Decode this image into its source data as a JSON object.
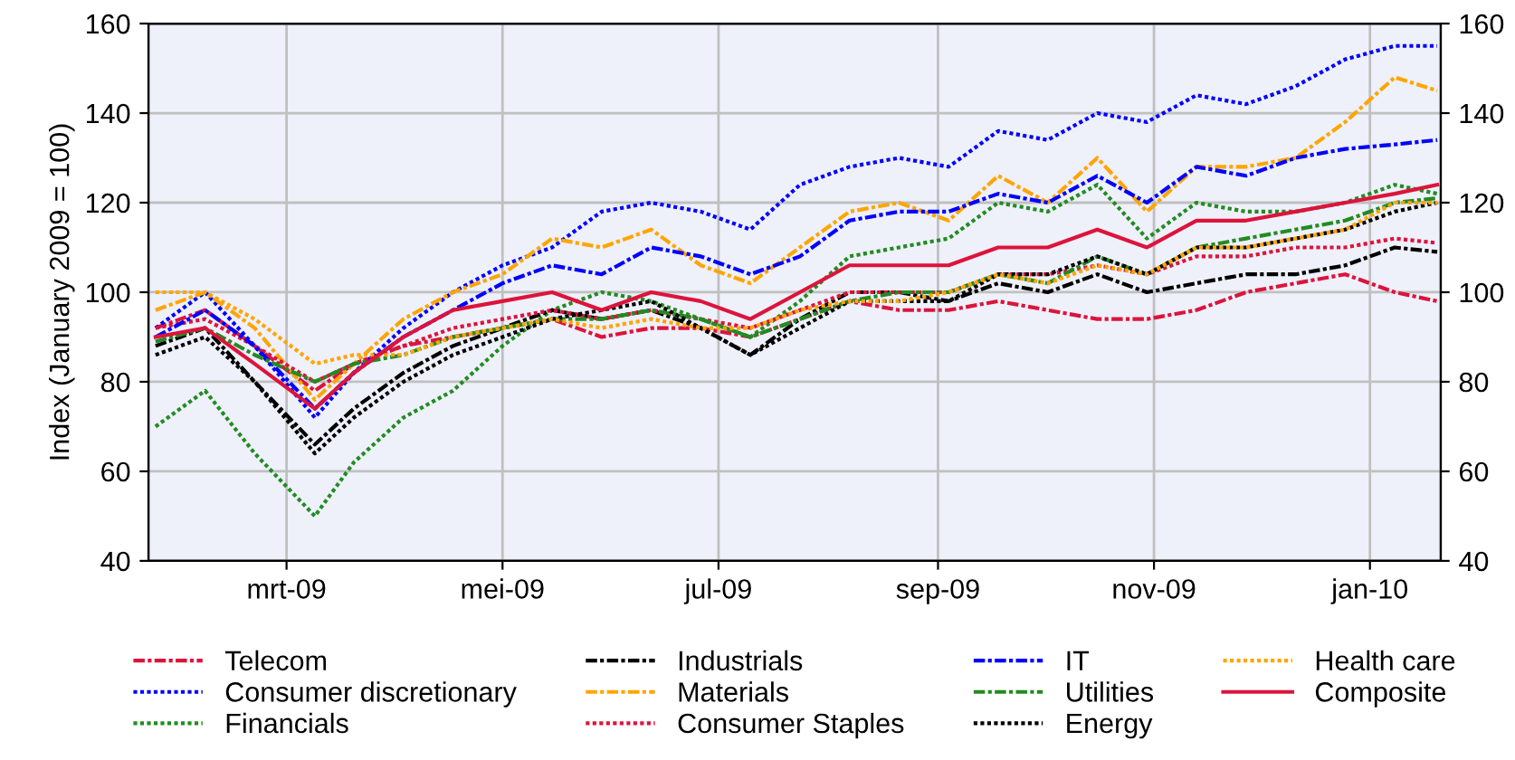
{
  "chart_data": {
    "type": "line",
    "ylabel": "Index (January 2009 = 100)",
    "x": [
      "2009-01-23",
      "2009-02-06",
      "2009-02-20",
      "2009-03-09",
      "2009-03-20",
      "2009-04-03",
      "2009-04-17",
      "2009-05-01",
      "2009-05-15",
      "2009-05-29",
      "2009-06-12",
      "2009-06-26",
      "2009-07-10",
      "2009-07-24",
      "2009-08-07",
      "2009-08-21",
      "2009-09-04",
      "2009-09-18",
      "2009-10-02",
      "2009-10-16",
      "2009-10-30",
      "2009-11-13",
      "2009-11-27",
      "2009-12-11",
      "2009-12-25",
      "2010-01-08",
      "2010-01-20"
    ],
    "series": [
      {
        "name": "Telecom",
        "color": "#dc143c",
        "line_style": "dashdot",
        "values": [
          92,
          96,
          88,
          78,
          84,
          88,
          90,
          92,
          94,
          90,
          92,
          92,
          90,
          94,
          98,
          96,
          96,
          98,
          96,
          94,
          94,
          96,
          100,
          102,
          104,
          100,
          98
        ]
      },
      {
        "name": "Consumer discretionary",
        "color": "#0000ff",
        "line_style": "dotted",
        "values": [
          92,
          100,
          88,
          72,
          82,
          92,
          100,
          106,
          110,
          118,
          120,
          118,
          114,
          124,
          128,
          130,
          128,
          136,
          134,
          140,
          138,
          144,
          142,
          146,
          152,
          155,
          155
        ]
      },
      {
        "name": "Financials",
        "color": "#228b22",
        "line_style": "dotted",
        "values": [
          70,
          78,
          64,
          50,
          62,
          72,
          78,
          88,
          96,
          100,
          98,
          94,
          90,
          98,
          108,
          110,
          112,
          120,
          118,
          124,
          112,
          120,
          118,
          118,
          120,
          124,
          122
        ]
      },
      {
        "name": "Industrials",
        "color": "#000000",
        "line_style": "dashdot",
        "values": [
          88,
          92,
          80,
          66,
          74,
          82,
          88,
          92,
          96,
          94,
          96,
          92,
          86,
          94,
          100,
          100,
          98,
          102,
          100,
          104,
          100,
          102,
          104,
          104,
          106,
          110,
          109
        ]
      },
      {
        "name": "Materials",
        "color": "#ffa500",
        "line_style": "dashdot",
        "values": [
          96,
          100,
          92,
          76,
          84,
          94,
          100,
          104,
          112,
          110,
          114,
          106,
          102,
          110,
          118,
          120,
          116,
          126,
          120,
          130,
          118,
          128,
          128,
          130,
          138,
          148,
          145
        ]
      },
      {
        "name": "Consumer Staples",
        "color": "#dc143c",
        "line_style": "dotted",
        "values": [
          92,
          94,
          88,
          80,
          84,
          88,
          92,
          94,
          96,
          94,
          96,
          94,
          92,
          96,
          100,
          100,
          100,
          104,
          104,
          106,
          104,
          108,
          108,
          110,
          110,
          112,
          111
        ]
      },
      {
        "name": "IT",
        "color": "#0000ff",
        "line_style": "dashdot",
        "values": [
          90,
          96,
          88,
          74,
          82,
          90,
          96,
          102,
          106,
          104,
          110,
          108,
          104,
          108,
          116,
          118,
          118,
          122,
          120,
          126,
          120,
          128,
          126,
          130,
          132,
          133,
          134
        ]
      },
      {
        "name": "Utilities",
        "color": "#228b22",
        "line_style": "dashdot",
        "values": [
          89,
          92,
          86,
          80,
          84,
          86,
          90,
          92,
          94,
          94,
          96,
          94,
          90,
          94,
          98,
          100,
          100,
          104,
          102,
          108,
          104,
          110,
          112,
          114,
          116,
          120,
          121
        ]
      },
      {
        "name": "Energy",
        "color": "#000000",
        "line_style": "dotted",
        "values": [
          86,
          90,
          80,
          64,
          72,
          80,
          86,
          90,
          94,
          96,
          98,
          92,
          86,
          92,
          98,
          98,
          98,
          104,
          104,
          108,
          104,
          110,
          110,
          112,
          114,
          118,
          120
        ]
      },
      {
        "name": "Health care",
        "color": "#ffa500",
        "line_style": "dotted",
        "values": [
          100,
          100,
          94,
          84,
          86,
          86,
          90,
          92,
          94,
          92,
          94,
          92,
          92,
          96,
          98,
          98,
          100,
          104,
          102,
          106,
          104,
          110,
          110,
          112,
          114,
          120,
          120
        ]
      },
      {
        "name": "Composite",
        "color": "#dc143c",
        "line_style": "solid",
        "values": [
          90,
          92,
          84,
          74,
          82,
          90,
          96,
          98,
          100,
          96,
          100,
          98,
          94,
          100,
          106,
          106,
          106,
          110,
          110,
          114,
          110,
          116,
          116,
          118,
          120,
          122,
          124
        ]
      }
    ],
    "xlim": [
      "2009-01-21",
      "2010-01-21"
    ],
    "xticks": [
      {
        "value": "2009-03-01",
        "label": "mrt-09"
      },
      {
        "value": "2009-05-01",
        "label": "mei-09"
      },
      {
        "value": "2009-07-01",
        "label": "jul-09"
      },
      {
        "value": "2009-09-01",
        "label": "sep-09"
      },
      {
        "value": "2009-11-01",
        "label": "nov-09"
      },
      {
        "value": "2010-01-01",
        "label": "jan-10"
      }
    ],
    "ylim": [
      40,
      160
    ],
    "yticks": [
      40,
      60,
      80,
      100,
      120,
      140,
      160
    ],
    "y2lim": [
      40,
      160
    ],
    "y2ticks": [
      40,
      60,
      80,
      100,
      120,
      140,
      160
    ],
    "grid": true,
    "legend": "bottom",
    "marker": "none"
  }
}
